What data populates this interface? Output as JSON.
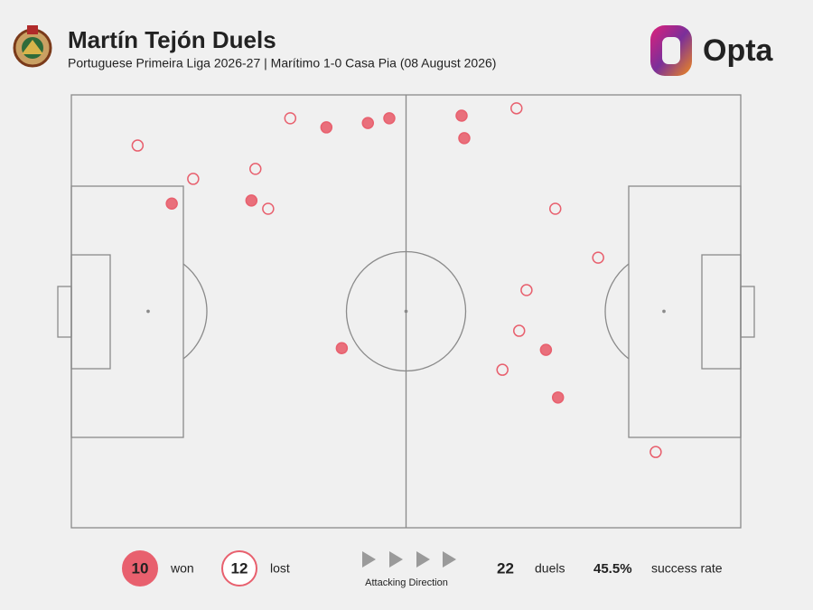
{
  "chart_data": {
    "type": "scatter",
    "title": "Martín Tejón Duels",
    "subtitle": "Portuguese Primeira Liga 2026-27 | Marítimo 1-0 Casa Pia (08 August 2026)",
    "brand": "Opta",
    "direction_label": "Attacking Direction",
    "xlim": [
      0,
      100
    ],
    "ylim": [
      0,
      100
    ],
    "series": [
      {
        "name": "won",
        "color": "#e8606e",
        "filled": true,
        "count": 10,
        "x": [
          38.1,
          44.3,
          47.5,
          58.3,
          58.7,
          15.0,
          26.9,
          40.4,
          70.9,
          72.7
        ],
        "y": [
          92.5,
          93.5,
          94.6,
          95.2,
          90.0,
          74.9,
          75.6,
          41.5,
          41.1,
          30.1
        ]
      },
      {
        "name": "lost",
        "color": "#e8606e",
        "filled": false,
        "count": 12,
        "x": [
          9.9,
          18.2,
          32.7,
          27.5,
          29.4,
          66.5,
          72.3,
          78.7,
          68.0,
          66.9,
          64.4,
          87.3
        ],
        "y": [
          88.3,
          80.6,
          94.6,
          82.9,
          73.7,
          96.9,
          73.7,
          62.4,
          54.9,
          45.5,
          36.5,
          17.5
        ]
      }
    ],
    "total": 22,
    "total_label": "duels",
    "success_rate": {
      "value": 45.5,
      "label": "45.5%"
    },
    "success_rate_text": "success rate"
  }
}
